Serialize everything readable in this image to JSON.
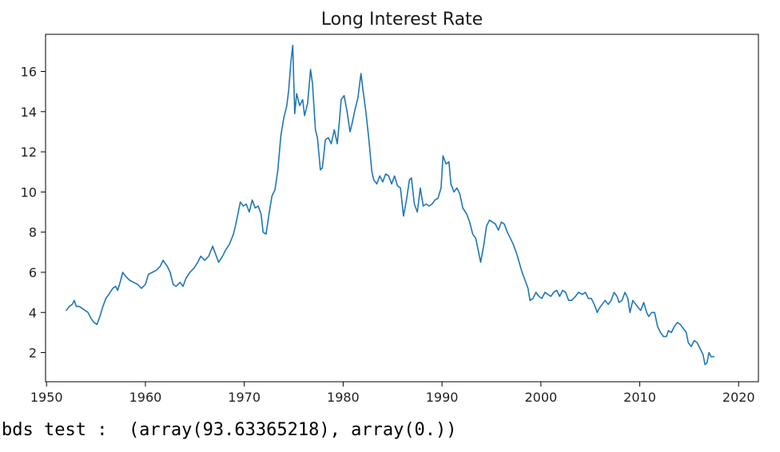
{
  "chart_data": {
    "type": "line",
    "title": "Long Interest Rate",
    "xlabel": "",
    "ylabel": "",
    "xlim": [
      1949.9,
      2022.0
    ],
    "ylim": [
      0.55,
      17.85
    ],
    "x_ticks": [
      1950,
      1960,
      1970,
      1980,
      1990,
      2000,
      2010,
      2020
    ],
    "y_ticks": [
      2,
      4,
      6,
      8,
      10,
      12,
      14,
      16
    ],
    "grid": false,
    "legend": "none",
    "series": [
      {
        "color": "#1f77b4",
        "points": [
          [
            1952.0,
            4.1
          ],
          [
            1952.3,
            4.3
          ],
          [
            1952.6,
            4.4
          ],
          [
            1952.8,
            4.6
          ],
          [
            1953.0,
            4.3
          ],
          [
            1953.3,
            4.3
          ],
          [
            1953.6,
            4.2
          ],
          [
            1953.9,
            4.1
          ],
          [
            1954.2,
            4.0
          ],
          [
            1954.5,
            3.7
          ],
          [
            1954.8,
            3.5
          ],
          [
            1955.1,
            3.4
          ],
          [
            1955.4,
            3.8
          ],
          [
            1955.7,
            4.3
          ],
          [
            1956.0,
            4.7
          ],
          [
            1956.3,
            4.9
          ],
          [
            1956.7,
            5.2
          ],
          [
            1957.0,
            5.3
          ],
          [
            1957.2,
            5.1
          ],
          [
            1957.5,
            5.6
          ],
          [
            1957.7,
            6.0
          ],
          [
            1958.0,
            5.8
          ],
          [
            1958.4,
            5.6
          ],
          [
            1958.8,
            5.5
          ],
          [
            1959.2,
            5.4
          ],
          [
            1959.6,
            5.2
          ],
          [
            1960.0,
            5.4
          ],
          [
            1960.3,
            5.9
          ],
          [
            1960.7,
            6.0
          ],
          [
            1961.1,
            6.1
          ],
          [
            1961.5,
            6.3
          ],
          [
            1961.8,
            6.6
          ],
          [
            1962.2,
            6.3
          ],
          [
            1962.5,
            6.0
          ],
          [
            1962.8,
            5.4
          ],
          [
            1963.1,
            5.3
          ],
          [
            1963.5,
            5.5
          ],
          [
            1963.8,
            5.3
          ],
          [
            1964.1,
            5.7
          ],
          [
            1964.5,
            6.0
          ],
          [
            1964.9,
            6.2
          ],
          [
            1965.3,
            6.5
          ],
          [
            1965.6,
            6.8
          ],
          [
            1966.0,
            6.6
          ],
          [
            1966.4,
            6.8
          ],
          [
            1966.8,
            7.3
          ],
          [
            1967.1,
            6.9
          ],
          [
            1967.4,
            6.5
          ],
          [
            1967.8,
            6.8
          ],
          [
            1968.1,
            7.1
          ],
          [
            1968.5,
            7.4
          ],
          [
            1968.9,
            7.9
          ],
          [
            1969.1,
            8.3
          ],
          [
            1969.4,
            9.0
          ],
          [
            1969.6,
            9.5
          ],
          [
            1969.9,
            9.3
          ],
          [
            1970.2,
            9.4
          ],
          [
            1970.5,
            9.0
          ],
          [
            1970.8,
            9.6
          ],
          [
            1971.1,
            9.2
          ],
          [
            1971.4,
            9.3
          ],
          [
            1971.7,
            8.9
          ],
          [
            1971.9,
            8.0
          ],
          [
            1972.2,
            7.9
          ],
          [
            1972.5,
            8.9
          ],
          [
            1972.8,
            9.8
          ],
          [
            1973.1,
            10.1
          ],
          [
            1973.4,
            11.1
          ],
          [
            1973.7,
            12.8
          ],
          [
            1974.0,
            13.7
          ],
          [
            1974.3,
            14.3
          ],
          [
            1974.5,
            15.1
          ],
          [
            1974.7,
            16.4
          ],
          [
            1974.9,
            17.3
          ],
          [
            1975.1,
            13.9
          ],
          [
            1975.3,
            14.9
          ],
          [
            1975.6,
            14.3
          ],
          [
            1975.9,
            14.6
          ],
          [
            1976.1,
            13.8
          ],
          [
            1976.4,
            14.4
          ],
          [
            1976.7,
            16.1
          ],
          [
            1976.9,
            15.4
          ],
          [
            1977.2,
            13.1
          ],
          [
            1977.4,
            12.7
          ],
          [
            1977.7,
            11.1
          ],
          [
            1977.9,
            11.2
          ],
          [
            1978.2,
            12.6
          ],
          [
            1978.5,
            12.7
          ],
          [
            1978.8,
            12.4
          ],
          [
            1979.1,
            13.1
          ],
          [
            1979.4,
            12.4
          ],
          [
            1979.6,
            13.4
          ],
          [
            1979.8,
            14.6
          ],
          [
            1980.1,
            14.8
          ],
          [
            1980.4,
            14.0
          ],
          [
            1980.7,
            13.0
          ],
          [
            1980.9,
            13.4
          ],
          [
            1981.2,
            14.1
          ],
          [
            1981.5,
            14.7
          ],
          [
            1981.8,
            15.9
          ],
          [
            1982.0,
            15.1
          ],
          [
            1982.3,
            14.0
          ],
          [
            1982.6,
            12.6
          ],
          [
            1982.9,
            11.0
          ],
          [
            1983.1,
            10.6
          ],
          [
            1983.4,
            10.4
          ],
          [
            1983.7,
            10.8
          ],
          [
            1984.0,
            10.5
          ],
          [
            1984.3,
            10.9
          ],
          [
            1984.6,
            10.8
          ],
          [
            1984.9,
            10.4
          ],
          [
            1985.2,
            10.8
          ],
          [
            1985.5,
            10.3
          ],
          [
            1985.8,
            10.2
          ],
          [
            1986.1,
            8.8
          ],
          [
            1986.4,
            9.6
          ],
          [
            1986.7,
            10.6
          ],
          [
            1986.9,
            10.7
          ],
          [
            1987.2,
            9.4
          ],
          [
            1987.5,
            9.0
          ],
          [
            1987.8,
            10.2
          ],
          [
            1988.1,
            9.3
          ],
          [
            1988.4,
            9.4
          ],
          [
            1988.7,
            9.3
          ],
          [
            1989.0,
            9.4
          ],
          [
            1989.3,
            9.6
          ],
          [
            1989.6,
            9.7
          ],
          [
            1989.9,
            10.2
          ],
          [
            1990.1,
            11.8
          ],
          [
            1990.4,
            11.4
          ],
          [
            1990.7,
            11.5
          ],
          [
            1990.9,
            10.4
          ],
          [
            1991.2,
            10.0
          ],
          [
            1991.5,
            10.2
          ],
          [
            1991.8,
            9.9
          ],
          [
            1992.1,
            9.2
          ],
          [
            1992.5,
            8.9
          ],
          [
            1992.8,
            8.5
          ],
          [
            1993.1,
            7.9
          ],
          [
            1993.4,
            7.7
          ],
          [
            1993.7,
            7.0
          ],
          [
            1993.9,
            6.5
          ],
          [
            1994.2,
            7.3
          ],
          [
            1994.5,
            8.3
          ],
          [
            1994.8,
            8.6
          ],
          [
            1995.1,
            8.5
          ],
          [
            1995.4,
            8.4
          ],
          [
            1995.7,
            8.1
          ],
          [
            1996.0,
            8.5
          ],
          [
            1996.3,
            8.4
          ],
          [
            1996.6,
            8.0
          ],
          [
            1996.9,
            7.7
          ],
          [
            1997.2,
            7.4
          ],
          [
            1997.5,
            7.0
          ],
          [
            1997.8,
            6.5
          ],
          [
            1998.1,
            6.0
          ],
          [
            1998.4,
            5.6
          ],
          [
            1998.7,
            5.2
          ],
          [
            1998.9,
            4.6
          ],
          [
            1999.2,
            4.7
          ],
          [
            1999.5,
            5.0
          ],
          [
            1999.8,
            4.8
          ],
          [
            2000.1,
            4.7
          ],
          [
            2000.4,
            5.0
          ],
          [
            2000.7,
            4.9
          ],
          [
            2001.0,
            4.8
          ],
          [
            2001.3,
            5.0
          ],
          [
            2001.6,
            5.1
          ],
          [
            2001.9,
            4.8
          ],
          [
            2002.2,
            5.1
          ],
          [
            2002.5,
            5.0
          ],
          [
            2002.8,
            4.6
          ],
          [
            2003.1,
            4.6
          ],
          [
            2003.5,
            4.8
          ],
          [
            2003.8,
            5.0
          ],
          [
            2004.2,
            4.9
          ],
          [
            2004.5,
            5.0
          ],
          [
            2004.8,
            4.7
          ],
          [
            2005.1,
            4.7
          ],
          [
            2005.4,
            4.4
          ],
          [
            2005.7,
            4.0
          ],
          [
            2005.9,
            4.2
          ],
          [
            2006.2,
            4.4
          ],
          [
            2006.5,
            4.6
          ],
          [
            2006.8,
            4.4
          ],
          [
            2007.1,
            4.6
          ],
          [
            2007.4,
            5.0
          ],
          [
            2007.7,
            4.8
          ],
          [
            2007.9,
            4.5
          ],
          [
            2008.2,
            4.6
          ],
          [
            2008.5,
            5.0
          ],
          [
            2008.8,
            4.7
          ],
          [
            2009.0,
            4.0
          ],
          [
            2009.3,
            4.6
          ],
          [
            2009.6,
            4.4
          ],
          [
            2009.9,
            4.2
          ],
          [
            2010.1,
            4.1
          ],
          [
            2010.4,
            4.5
          ],
          [
            2010.7,
            4.0
          ],
          [
            2010.9,
            3.8
          ],
          [
            2011.2,
            4.0
          ],
          [
            2011.5,
            4.0
          ],
          [
            2011.8,
            3.3
          ],
          [
            2012.1,
            3.0
          ],
          [
            2012.4,
            2.8
          ],
          [
            2012.7,
            2.8
          ],
          [
            2012.9,
            3.1
          ],
          [
            2013.2,
            3.0
          ],
          [
            2013.5,
            3.3
          ],
          [
            2013.8,
            3.5
          ],
          [
            2014.1,
            3.4
          ],
          [
            2014.4,
            3.2
          ],
          [
            2014.7,
            3.0
          ],
          [
            2014.9,
            2.5
          ],
          [
            2015.2,
            2.3
          ],
          [
            2015.5,
            2.6
          ],
          [
            2015.8,
            2.5
          ],
          [
            2016.1,
            2.2
          ],
          [
            2016.4,
            1.9
          ],
          [
            2016.6,
            1.4
          ],
          [
            2016.8,
            1.5
          ],
          [
            2017.0,
            2.0
          ],
          [
            2017.2,
            1.8
          ],
          [
            2017.5,
            1.8
          ]
        ]
      }
    ]
  },
  "console": {
    "text": "bds test :  (array(93.63365218), array(0.))"
  }
}
